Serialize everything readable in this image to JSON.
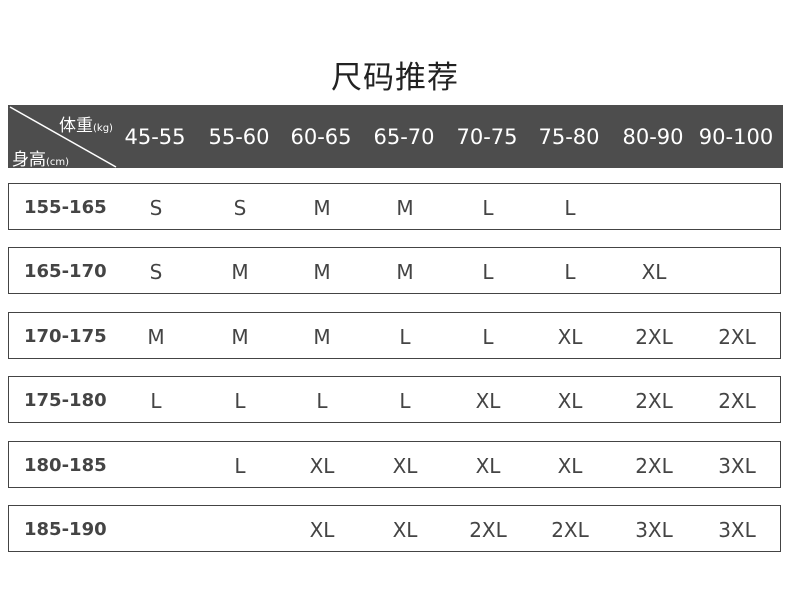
{
  "title": "尺码推荐",
  "header": {
    "weight_label": "体重",
    "weight_unit": "(kg)",
    "height_label": "身高",
    "height_unit": "(cm)",
    "columns": [
      "45-55",
      "55-60",
      "60-65",
      "65-70",
      "70-75",
      "75-80",
      "80-90",
      "90-100"
    ]
  },
  "rows": [
    {
      "height": "155-165",
      "sizes": [
        "S",
        "S",
        "M",
        "M",
        "L",
        "L",
        "",
        ""
      ]
    },
    {
      "height": "165-170",
      "sizes": [
        "S",
        "M",
        "M",
        "M",
        "L",
        "L",
        "XL",
        ""
      ]
    },
    {
      "height": "170-175",
      "sizes": [
        "M",
        "M",
        "M",
        "L",
        "L",
        "XL",
        "2XL",
        "2XL"
      ]
    },
    {
      "height": "175-180",
      "sizes": [
        "L",
        "L",
        "L",
        "L",
        "XL",
        "XL",
        "2XL",
        "2XL"
      ]
    },
    {
      "height": "180-185",
      "sizes": [
        "",
        "L",
        "XL",
        "XL",
        "XL",
        "XL",
        "2XL",
        "3XL"
      ]
    },
    {
      "height": "185-190",
      "sizes": [
        "",
        "",
        "XL",
        "XL",
        "2XL",
        "2XL",
        "3XL",
        "3XL"
      ]
    }
  ]
}
